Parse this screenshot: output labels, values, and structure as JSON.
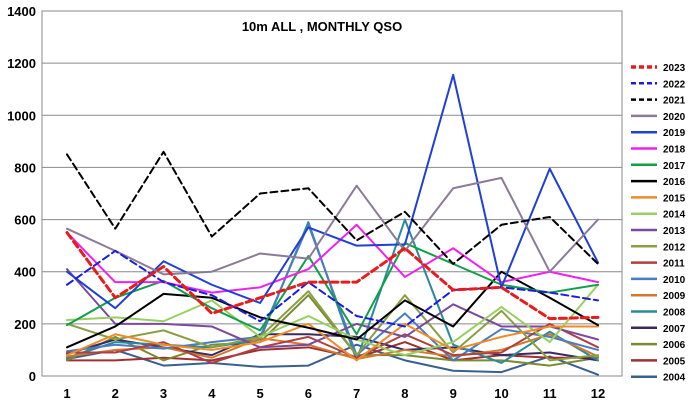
{
  "chart_data": {
    "type": "line",
    "title": "10m ALL , MONTHLY QSO",
    "xlabel": "",
    "ylabel": "",
    "categories": [
      "1",
      "2",
      "3",
      "4",
      "5",
      "6",
      "7",
      "8",
      "9",
      "10",
      "11",
      "12"
    ],
    "ylim": [
      0,
      1400
    ],
    "yticks": [
      0,
      200,
      400,
      600,
      800,
      1000,
      1200,
      1400
    ],
    "grid": true,
    "legend_position": "right",
    "series": [
      {
        "name": "2023",
        "color": "#e81c1c",
        "dash": "dashed",
        "width": 3,
        "values": [
          550,
          300,
          420,
          240,
          300,
          360,
          360,
          490,
          330,
          340,
          220,
          225
        ]
      },
      {
        "name": "2022",
        "color": "#1c1ce0",
        "dash": "dashed",
        "width": 2,
        "values": [
          350,
          480,
          360,
          310,
          210,
          360,
          230,
          190,
          330,
          340,
          320,
          290
        ]
      },
      {
        "name": "2021",
        "color": "#000000",
        "dash": "dashed",
        "width": 2,
        "values": [
          850,
          565,
          860,
          535,
          700,
          720,
          520,
          630,
          430,
          580,
          610,
          430
        ]
      },
      {
        "name": "2020",
        "color": "#8c7a99",
        "dash": "solid",
        "width": 2,
        "values": [
          565,
          480,
          390,
          400,
          470,
          450,
          730,
          480,
          720,
          760,
          400,
          600
        ]
      },
      {
        "name": "2019",
        "color": "#1f3fd6",
        "dash": "solid",
        "width": 2,
        "values": [
          400,
          260,
          440,
          350,
          280,
          570,
          500,
          505,
          1155,
          340,
          795,
          435
        ]
      },
      {
        "name": "2018",
        "color": "#ee22ee",
        "dash": "solid",
        "width": 2,
        "values": [
          550,
          360,
          360,
          320,
          340,
          410,
          580,
          380,
          490,
          360,
          400,
          360
        ]
      },
      {
        "name": "2017",
        "color": "#10a04a",
        "dash": "solid",
        "width": 2,
        "values": [
          195,
          300,
          365,
          260,
          175,
          460,
          160,
          510,
          430,
          350,
          320,
          350
        ]
      },
      {
        "name": "2016",
        "color": "#000000",
        "dash": "solid",
        "width": 2,
        "values": [
          110,
          190,
          315,
          300,
          225,
          185,
          140,
          290,
          190,
          400,
          300,
          195
        ]
      },
      {
        "name": "2015",
        "color": "#f08c28",
        "dash": "solid",
        "width": 2,
        "values": [
          80,
          160,
          120,
          100,
          130,
          200,
          60,
          200,
          100,
          150,
          190,
          190
        ]
      },
      {
        "name": "2014",
        "color": "#98d060",
        "dash": "solid",
        "width": 2,
        "values": [
          215,
          225,
          210,
          290,
          150,
          230,
          140,
          80,
          130,
          265,
          130,
          350
        ]
      },
      {
        "name": "2013",
        "color": "#7a4aa0",
        "dash": "solid",
        "width": 2,
        "values": [
          410,
          200,
          200,
          190,
          110,
          120,
          200,
          150,
          275,
          190,
          190,
          140
        ]
      },
      {
        "name": "2012",
        "color": "#8aa040",
        "dash": "solid",
        "width": 2,
        "values": [
          200,
          140,
          175,
          110,
          150,
          325,
          80,
          310,
          90,
          250,
          60,
          80
        ]
      },
      {
        "name": "2011",
        "color": "#b04040",
        "dash": "solid",
        "width": 2,
        "values": [
          90,
          90,
          130,
          50,
          110,
          150,
          70,
          160,
          80,
          90,
          200,
          110
        ]
      },
      {
        "name": "2010",
        "color": "#4a7cc4",
        "dash": "solid",
        "width": 2,
        "values": [
          95,
          120,
          105,
          130,
          150,
          580,
          80,
          240,
          60,
          180,
          150,
          100
        ]
      },
      {
        "name": "2009",
        "color": "#d07a30",
        "dash": "solid",
        "width": 2,
        "values": [
          75,
          100,
          110,
          70,
          145,
          120,
          65,
          100,
          75,
          100,
          160,
          75
        ]
      },
      {
        "name": "2008",
        "color": "#2a8a9a",
        "dash": "solid",
        "width": 2,
        "values": [
          70,
          130,
          120,
          110,
          140,
          590,
          60,
          600,
          120,
          50,
          170,
          60
        ]
      },
      {
        "name": "2007",
        "color": "#3a2a60",
        "dash": "solid",
        "width": 2,
        "values": [
          85,
          140,
          110,
          80,
          160,
          160,
          150,
          100,
          110,
          80,
          90,
          60
        ]
      },
      {
        "name": "2006",
        "color": "#7a8a30",
        "dash": "solid",
        "width": 2,
        "values": [
          60,
          150,
          60,
          120,
          130,
          310,
          80,
          80,
          60,
          60,
          40,
          70
        ]
      },
      {
        "name": "2005",
        "color": "#a03030",
        "dash": "solid",
        "width": 2,
        "values": [
          60,
          60,
          70,
          60,
          100,
          110,
          70,
          130,
          60,
          80,
          70,
          70
        ]
      },
      {
        "name": "2004",
        "color": "#3a6090",
        "dash": "solid",
        "width": 2,
        "values": [
          65,
          100,
          40,
          50,
          35,
          40,
          120,
          60,
          20,
          15,
          75,
          5
        ]
      }
    ]
  }
}
